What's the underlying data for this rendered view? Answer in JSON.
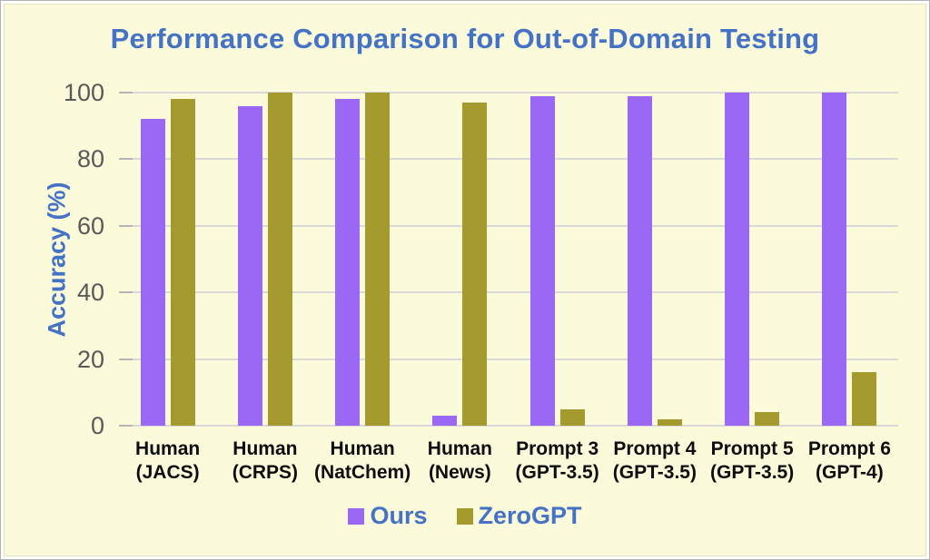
{
  "chart_data": {
    "type": "bar",
    "title": "Performance Comparison for Out-of-Domain Testing",
    "xlabel": "",
    "ylabel": "Accuracy (%)",
    "ylim": [
      0,
      100
    ],
    "yticks": [
      0,
      20,
      40,
      60,
      80,
      100
    ],
    "grid": true,
    "legend_position": "bottom",
    "categories": [
      "Human\n(JACS)",
      "Human\n(CRPS)",
      "Human\n(NatChem)",
      "Human\n(News)",
      "Prompt 3\n(GPT-3.5)",
      "Prompt 4\n(GPT-3.5)",
      "Prompt 5\n(GPT-3.5)",
      "Prompt 6\n(GPT-4)"
    ],
    "series": [
      {
        "name": "Ours",
        "color": "#9A68F4",
        "values": [
          92,
          96,
          98,
          3,
          99,
          99,
          100,
          100
        ]
      },
      {
        "name": "ZeroGPT",
        "color": "#A49A2E",
        "values": [
          98,
          100,
          100,
          97,
          5,
          2,
          4,
          16
        ]
      }
    ]
  },
  "colors": {
    "background": "#FBFADA",
    "title_text": "#4472C4",
    "axis_title_text": "#4472C4",
    "tick_label_text": "#595959",
    "gridline": "#D9D9D9",
    "grid_tick": "#B5B5B5",
    "x_label_text": "#0D0D0D",
    "legend_text": "#4472C4",
    "panel_border": "#B3B3B3"
  }
}
